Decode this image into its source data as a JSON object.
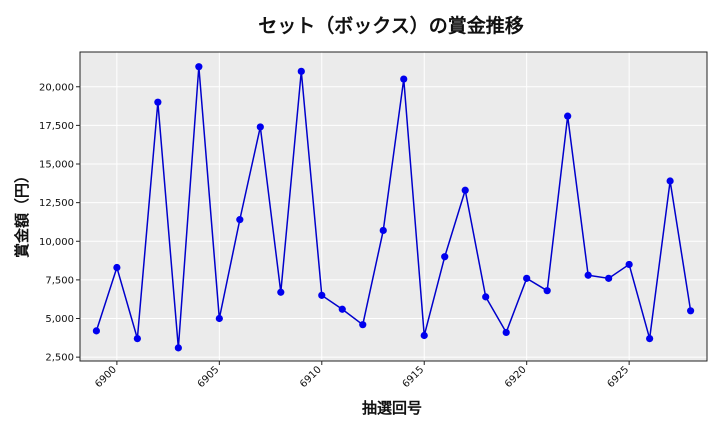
{
  "chart_data": {
    "type": "line",
    "title": "セット（ボックス）の賞金推移",
    "xlabel": "抽選回号",
    "ylabel": "賞金額（円）",
    "xlim": [
      6898.2,
      6928.8
    ],
    "ylim": [
      2250,
      22250
    ],
    "xticks": [
      6900,
      6905,
      6910,
      6915,
      6920,
      6925
    ],
    "xtick_labels": [
      "6900",
      "6905",
      "6910",
      "6915",
      "6920",
      "6925"
    ],
    "yticks": [
      2500,
      5000,
      7500,
      10000,
      12500,
      15000,
      17500,
      20000
    ],
    "ytick_labels": [
      "2,500",
      "5,000",
      "7,500",
      "10,000",
      "12,500",
      "15,000",
      "17,500",
      "20,000"
    ],
    "grid": true,
    "line_color": "#0000cc",
    "marker_color": "#0000ee",
    "background": "#ebebeb",
    "x": [
      6899,
      6900,
      6901,
      6902,
      6903,
      6904,
      6905,
      6906,
      6907,
      6908,
      6909,
      6910,
      6911,
      6912,
      6913,
      6914,
      6915,
      6916,
      6917,
      6918,
      6919,
      6920,
      6921,
      6922,
      6923,
      6924,
      6925,
      6926,
      6927,
      6928
    ],
    "y": [
      4200,
      8300,
      3700,
      19000,
      3100,
      21300,
      5000,
      11400,
      17400,
      6700,
      21000,
      6500,
      5600,
      4600,
      10700,
      20500,
      3900,
      9000,
      13300,
      6400,
      4100,
      7600,
      6800,
      18100,
      7800,
      7600,
      8500,
      3700,
      13900,
      5500
    ]
  }
}
